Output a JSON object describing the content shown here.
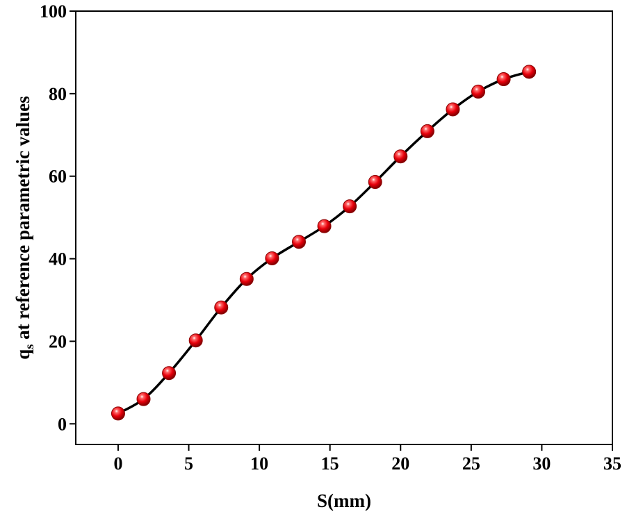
{
  "chart_data": {
    "type": "line",
    "xlabel": "S(mm)",
    "ylabel_main": "q",
    "ylabel_sub": "s",
    "ylabel_rest": " at reference parametric values",
    "xlim": [
      -3,
      35
    ],
    "ylim": [
      -5,
      100
    ],
    "xticks": [
      0,
      5,
      10,
      15,
      20,
      25,
      30,
      35
    ],
    "yticks": [
      0,
      20,
      40,
      60,
      80,
      100
    ],
    "grid": false,
    "legend": "none",
    "series": [
      {
        "x": [
          0,
          1.8,
          3.6,
          5.5,
          7.3,
          9.1,
          10.9,
          12.8,
          14.6,
          16.4,
          18.2,
          20.0,
          21.9,
          23.7,
          25.5,
          27.3,
          29.1
        ],
        "y": [
          2.5,
          6.0,
          12.3,
          20.2,
          28.2,
          35.1,
          40.1,
          44.1,
          47.9,
          52.7,
          58.6,
          64.8,
          70.9,
          76.2,
          80.5,
          83.5,
          85.3
        ],
        "line_color": "#000000",
        "marker_color": "#e8000b"
      }
    ]
  }
}
